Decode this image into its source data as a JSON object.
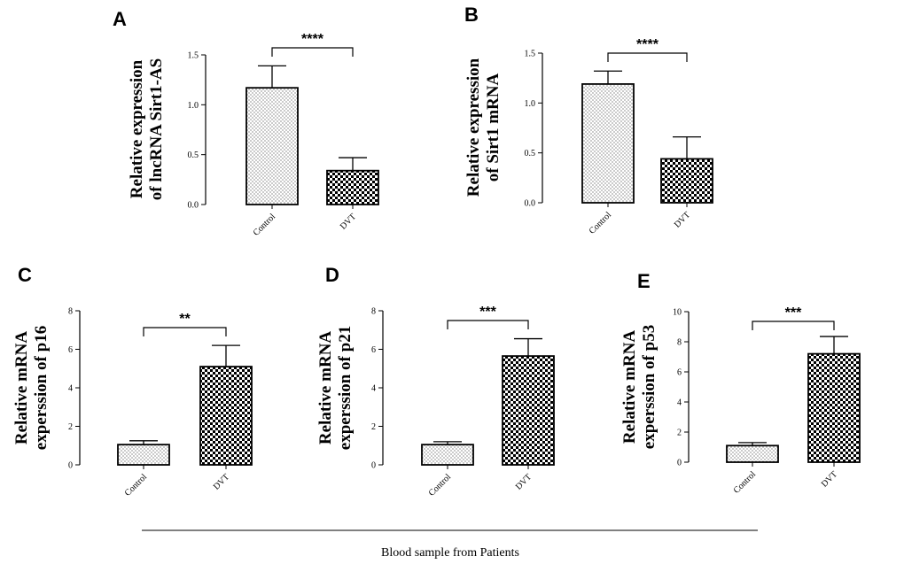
{
  "figure": {
    "footer_text": "Blood sample from Patients",
    "colors": {
      "ink": "#000000",
      "background": "#ffffff"
    },
    "patterns": {
      "Control": "dots-pattern",
      "DVT": "checker-pattern"
    }
  },
  "chart_data": [
    {
      "panel": "A",
      "type": "bar",
      "ylabel": [
        "Relative expression",
        "of lncRNA Sirt1-AS"
      ],
      "categories": [
        "Control",
        "DVT"
      ],
      "values": [
        1.17,
        0.34
      ],
      "errors": [
        0.22,
        0.13
      ],
      "ylim": [
        0,
        1.5
      ],
      "yticks": [
        0.0,
        0.5,
        1.0,
        1.5
      ],
      "ytick_labels": [
        "0.0",
        "0.5",
        "1.0",
        "1.5"
      ],
      "significance": "****"
    },
    {
      "panel": "B",
      "type": "bar",
      "ylabel": [
        "Relative expression",
        "of Sirt1 mRNA"
      ],
      "categories": [
        "Control",
        "DVT"
      ],
      "values": [
        1.19,
        0.44
      ],
      "errors": [
        0.13,
        0.22
      ],
      "ylim": [
        0,
        1.5
      ],
      "yticks": [
        0.0,
        0.5,
        1.0,
        1.5
      ],
      "ytick_labels": [
        "0.0",
        "0.5",
        "1.0",
        "1.5"
      ],
      "significance": "****"
    },
    {
      "panel": "C",
      "type": "bar",
      "ylabel": [
        "Relative mRNA",
        "experssion of p16"
      ],
      "categories": [
        "Control",
        "DVT"
      ],
      "values": [
        1.05,
        5.1
      ],
      "errors": [
        0.2,
        1.1
      ],
      "ylim": [
        0,
        8
      ],
      "yticks": [
        0,
        2,
        4,
        6,
        8
      ],
      "ytick_labels": [
        "0",
        "2",
        "4",
        "6",
        "8"
      ],
      "significance": "**"
    },
    {
      "panel": "D",
      "type": "bar",
      "ylabel": [
        "Relative mRNA",
        "experssion of p21"
      ],
      "categories": [
        "Control",
        "DVT"
      ],
      "values": [
        1.05,
        5.65
      ],
      "errors": [
        0.15,
        0.9
      ],
      "ylim": [
        0,
        8
      ],
      "yticks": [
        0,
        2,
        4,
        6,
        8
      ],
      "ytick_labels": [
        "0",
        "2",
        "4",
        "6",
        "8"
      ],
      "significance": "***"
    },
    {
      "panel": "E",
      "type": "bar",
      "ylabel": [
        "Relative mRNA",
        "experssion of p53"
      ],
      "categories": [
        "Control",
        "DVT"
      ],
      "values": [
        1.1,
        7.2
      ],
      "errors": [
        0.2,
        1.15
      ],
      "ylim": [
        0,
        10
      ],
      "yticks": [
        0,
        2,
        4,
        6,
        8,
        10
      ],
      "ytick_labels": [
        "0",
        "2",
        "4",
        "6",
        "8",
        "10"
      ],
      "significance": "***"
    }
  ]
}
